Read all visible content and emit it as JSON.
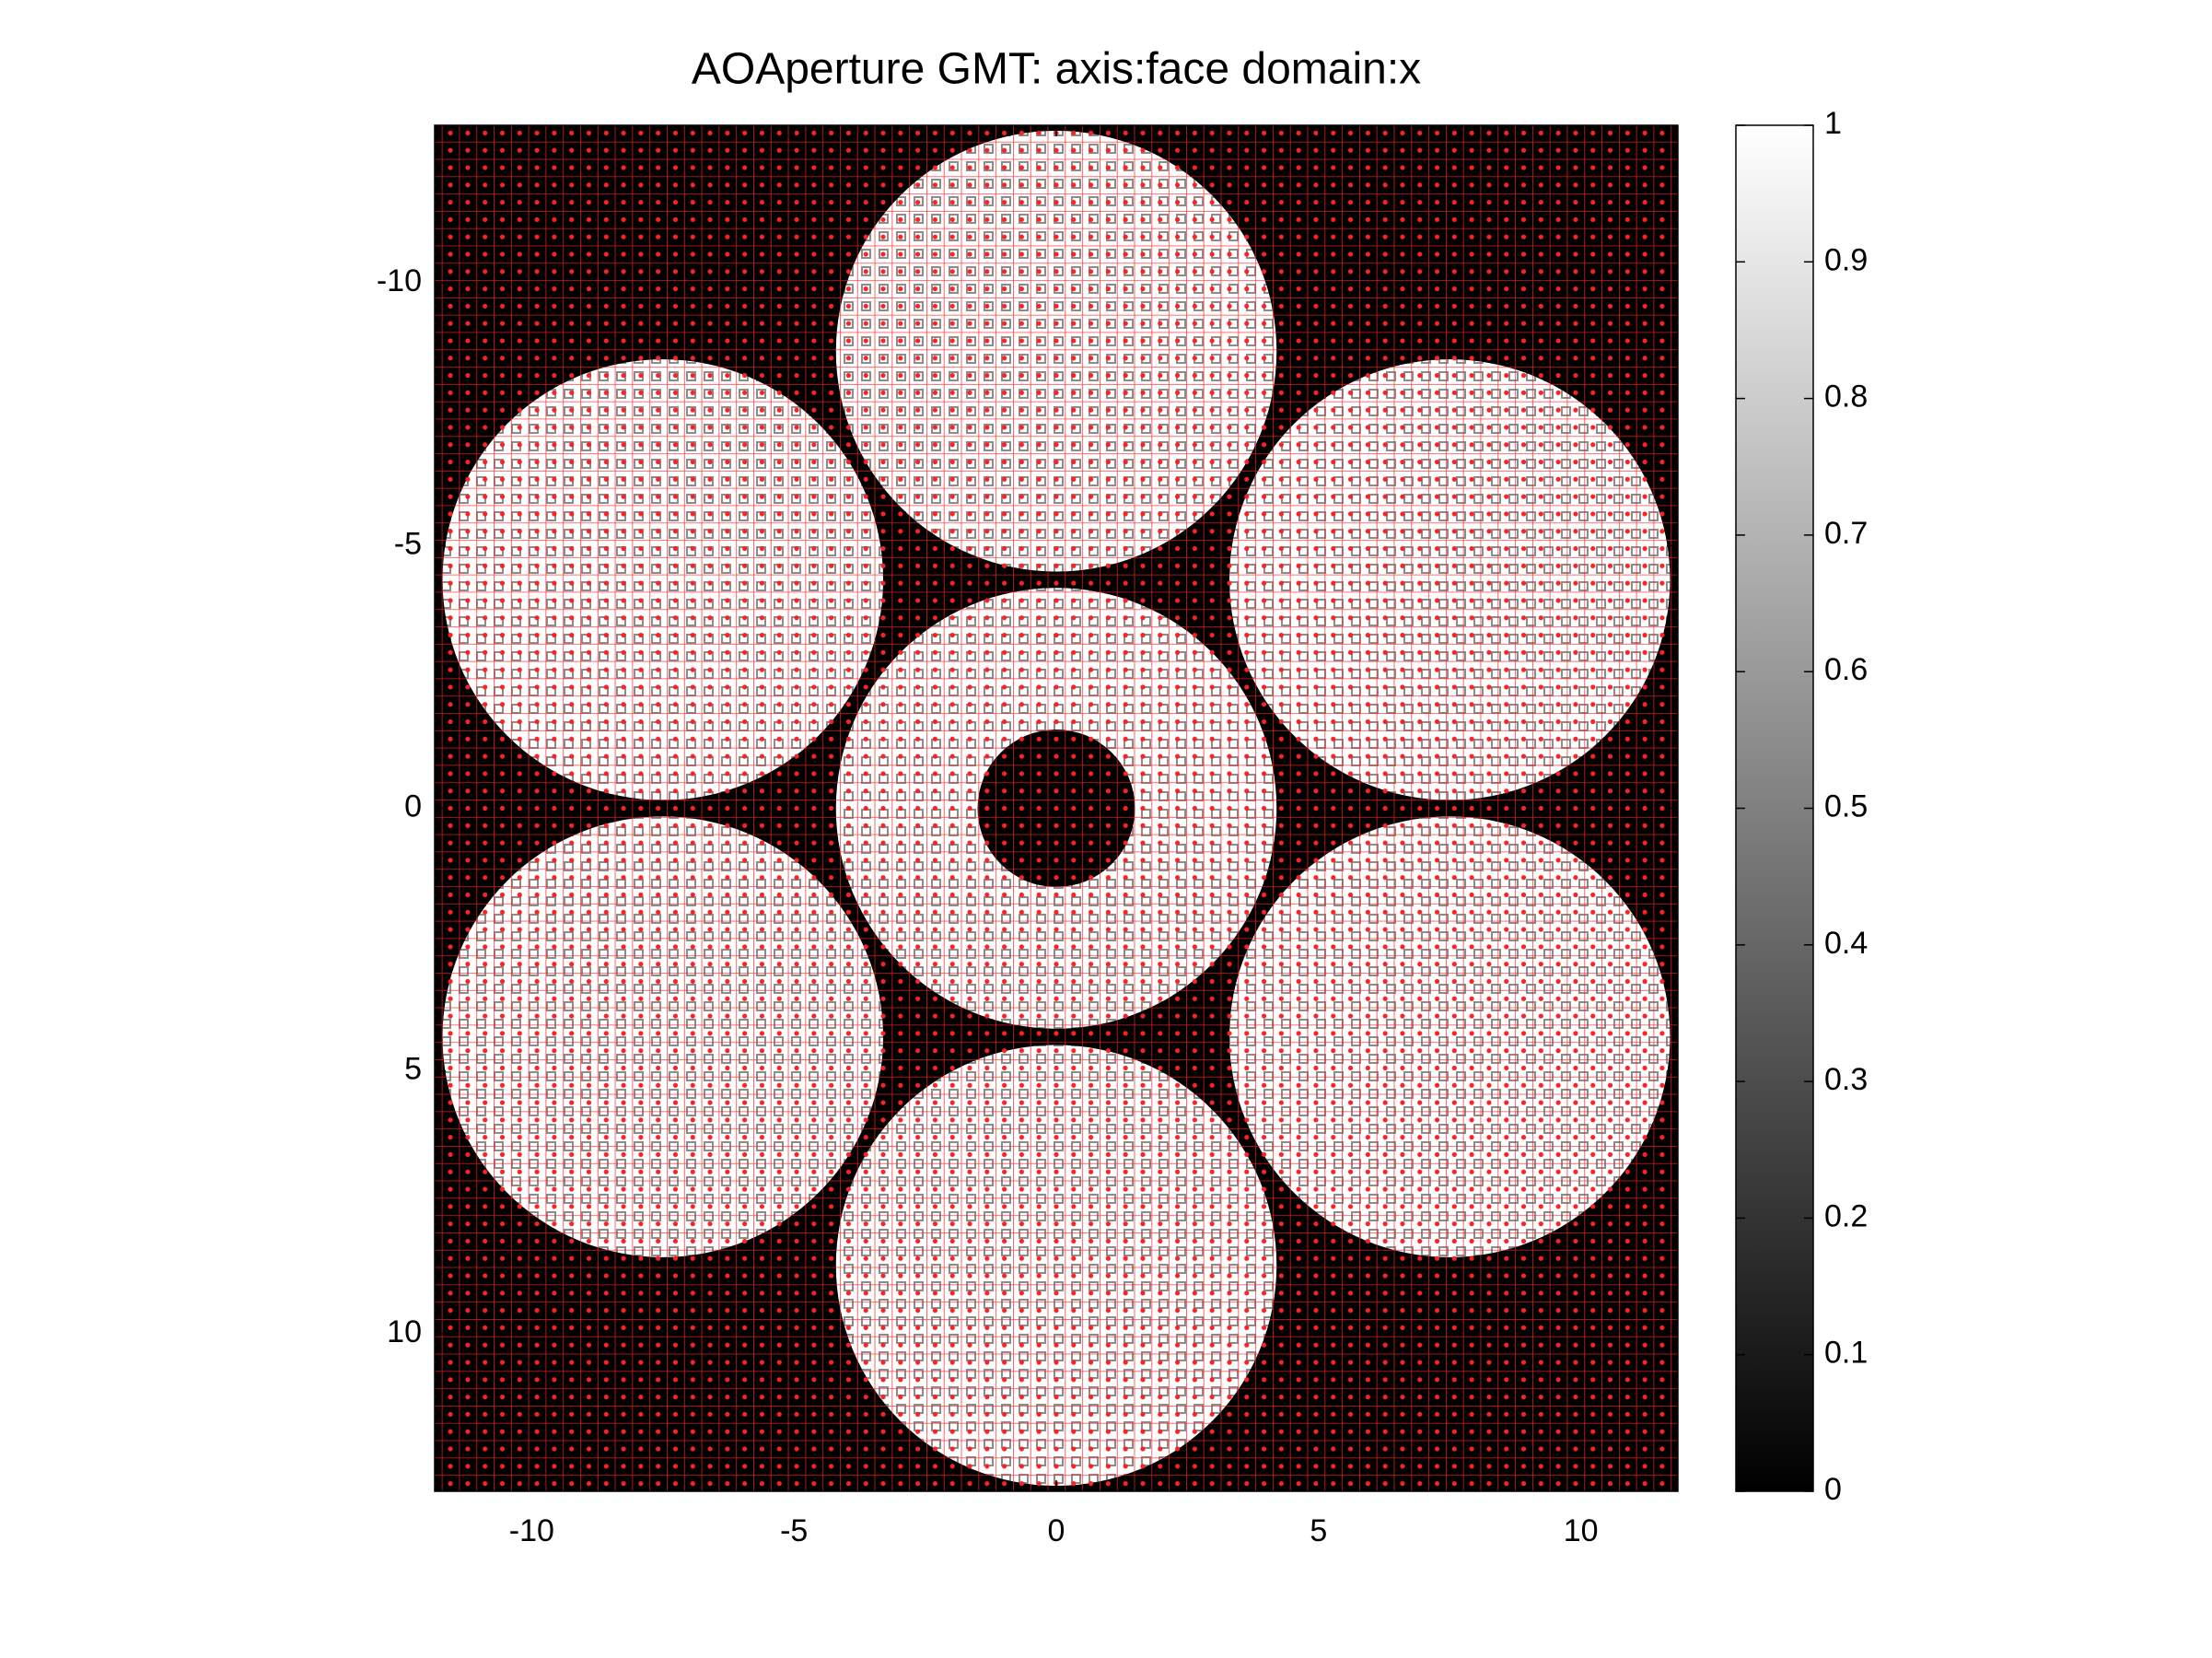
{
  "chart_data": {
    "type": "image",
    "title": "AOAperture GMT: axis:face domain:x",
    "xlim": [
      -11.85,
      11.85
    ],
    "xticks": [
      -10,
      -5,
      0,
      5,
      10
    ],
    "ylim": [
      -13,
      13
    ],
    "yticks": [
      -10,
      -5,
      0,
      5,
      10
    ],
    "y_reversed": true,
    "colormap": "gray",
    "clim": [
      0,
      1
    ],
    "colorbar_ticks": [
      0,
      0.1,
      0.2,
      0.3,
      0.4,
      0.5,
      0.6,
      0.7,
      0.8,
      0.9,
      1
    ],
    "background_value": 0,
    "segments": [
      {
        "x": 0,
        "y": -8.7,
        "r": 4.2,
        "value": 1
      },
      {
        "x": -7.5,
        "y": -4.35,
        "r": 4.2,
        "value": 1
      },
      {
        "x": 7.5,
        "y": -4.35,
        "r": 4.2,
        "value": 1
      },
      {
        "x": 0,
        "y": 0,
        "r": 4.2,
        "value": 1
      },
      {
        "x": -7.5,
        "y": 4.35,
        "r": 4.2,
        "value": 1
      },
      {
        "x": 7.5,
        "y": 4.35,
        "r": 4.2,
        "value": 1
      },
      {
        "x": 0,
        "y": 8.7,
        "r": 4.2,
        "value": 1
      },
      {
        "x": 0,
        "y": 0,
        "r": 1.5,
        "value": 0
      }
    ],
    "mesh_step": 0.33,
    "mesh_color": "#ff2020"
  }
}
